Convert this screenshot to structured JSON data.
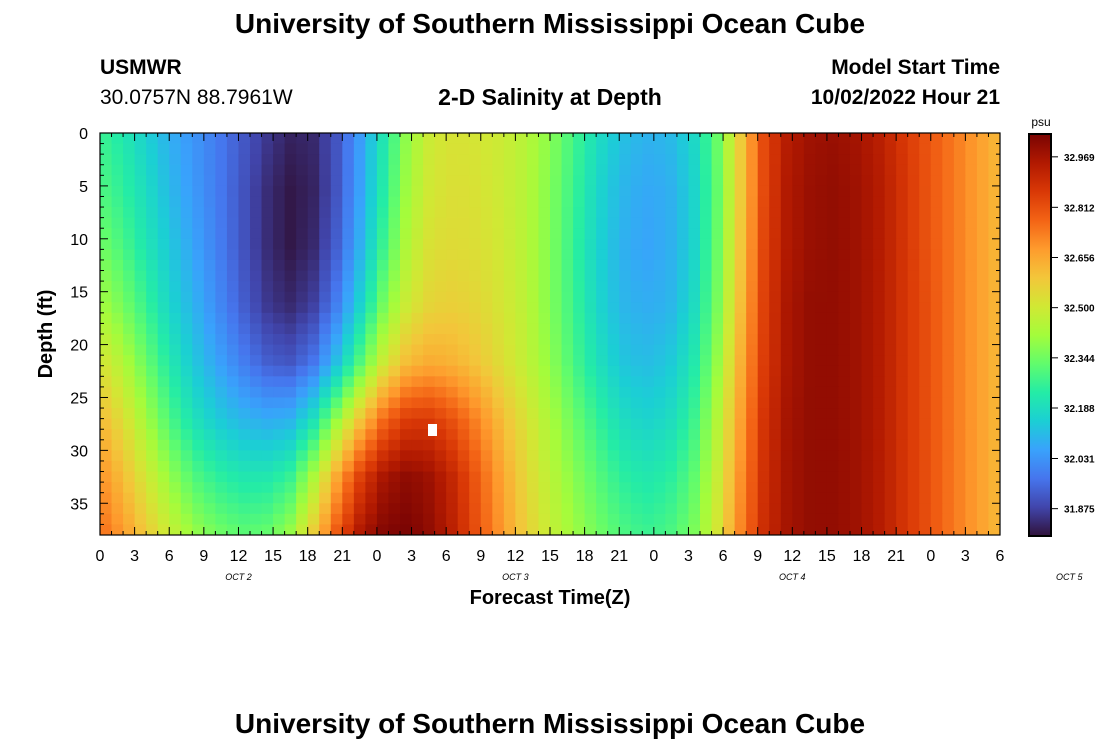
{
  "header": {
    "title": "University of Southern Mississippi Ocean Cube",
    "station_id": "USMWR",
    "coordinates": "30.0757N  88.7961W",
    "start_label": "Model Start Time",
    "start_value": "10/02/2022 Hour 21"
  },
  "footer": {
    "title": "University of Southern Mississippi Ocean Cube"
  },
  "chart_data": {
    "type": "heatmap",
    "title": "2-D Salinity at Depth",
    "xlabel": "Forecast Time(Z)",
    "ylabel": "Depth (ft)",
    "x_ticks": [
      "0",
      "3",
      "6",
      "9",
      "12",
      "15",
      "18",
      "21",
      "0",
      "3",
      "6",
      "9",
      "12",
      "15",
      "18",
      "21",
      "0",
      "3",
      "6",
      "9",
      "12",
      "15",
      "18",
      "21",
      "0",
      "3",
      "6"
    ],
    "x_day_labels": [
      {
        "label": "OCT 2",
        "hour_index": 12
      },
      {
        "label": "OCT 3",
        "hour_index": 36
      },
      {
        "label": "OCT 4",
        "hour_index": 60
      },
      {
        "label": "OCT 5",
        "hour_index": 84
      }
    ],
    "x_range_hours": [
      0,
      78
    ],
    "y_ticks": [
      0,
      5,
      10,
      15,
      20,
      25,
      30,
      35
    ],
    "y_range_ft": [
      0,
      38
    ],
    "colorbar": {
      "unit": "psu",
      "ticks": [
        "32.969",
        "32.812",
        "32.656",
        "32.500",
        "32.344",
        "32.188",
        "32.031",
        "31.875"
      ],
      "range": [
        31.79,
        33.04
      ]
    },
    "colors": {
      "ramp": [
        "#30123b",
        "#4145ab",
        "#4675ed",
        "#39a2fc",
        "#1bcfd4",
        "#24eca6",
        "#61fc6c",
        "#a4fc3b",
        "#d1e834",
        "#f3c63a",
        "#fe9b2d",
        "#f36315",
        "#d93806",
        "#b11901",
        "#7a0403"
      ],
      "missing_marker": "#ffffff"
    },
    "salinity_field_psu": [
      [
        32.27,
        32.22,
        32.15,
        32.08,
        32.03,
        31.98,
        31.92,
        31.86,
        31.82,
        31.83,
        31.91,
        32.05,
        32.22,
        32.4,
        32.5,
        32.52,
        32.51,
        32.49,
        32.45,
        32.38,
        32.28,
        32.19,
        32.12,
        32.09,
        32.1,
        32.16,
        32.32,
        32.57,
        32.82,
        32.94,
        32.98,
        32.99,
        32.97,
        32.93,
        32.86,
        32.8,
        32.74,
        32.68,
        32.62
      ],
      [
        32.3,
        32.25,
        32.18,
        32.1,
        32.04,
        31.98,
        31.91,
        31.84,
        31.8,
        31.82,
        31.91,
        32.06,
        32.24,
        32.42,
        32.51,
        32.53,
        32.52,
        32.49,
        32.45,
        32.37,
        32.27,
        32.17,
        32.1,
        32.07,
        32.08,
        32.15,
        32.31,
        32.57,
        32.82,
        32.95,
        32.99,
        33.0,
        32.98,
        32.94,
        32.87,
        32.8,
        32.74,
        32.68,
        32.62
      ],
      [
        32.35,
        32.29,
        32.21,
        32.13,
        32.06,
        31.99,
        31.91,
        31.84,
        31.8,
        31.83,
        31.93,
        32.09,
        32.28,
        32.45,
        32.53,
        32.54,
        32.53,
        32.5,
        32.45,
        32.37,
        32.26,
        32.16,
        32.09,
        32.06,
        32.08,
        32.15,
        32.32,
        32.58,
        32.83,
        32.95,
        32.99,
        33.0,
        32.98,
        32.94,
        32.87,
        32.8,
        32.74,
        32.68,
        32.62
      ],
      [
        32.42,
        32.35,
        32.26,
        32.16,
        32.09,
        32.01,
        31.93,
        31.86,
        31.83,
        31.87,
        31.99,
        32.16,
        32.36,
        32.5,
        32.56,
        32.57,
        32.55,
        32.51,
        32.46,
        32.37,
        32.27,
        32.17,
        32.1,
        32.08,
        32.09,
        32.17,
        32.34,
        32.6,
        32.84,
        32.96,
        33.0,
        33.0,
        32.98,
        32.94,
        32.87,
        32.81,
        32.74,
        32.68,
        32.62
      ],
      [
        32.52,
        32.44,
        32.33,
        32.22,
        32.13,
        32.06,
        31.99,
        31.93,
        31.91,
        31.97,
        32.12,
        32.31,
        32.5,
        32.62,
        32.65,
        32.63,
        32.59,
        32.53,
        32.47,
        32.39,
        32.29,
        32.2,
        32.13,
        32.11,
        32.13,
        32.21,
        32.38,
        32.63,
        32.85,
        32.96,
        33.0,
        33.0,
        32.98,
        32.94,
        32.87,
        32.81,
        32.74,
        32.68,
        32.62
      ],
      [
        32.62,
        32.53,
        32.41,
        32.29,
        32.2,
        32.14,
        32.1,
        32.08,
        32.09,
        32.2,
        32.4,
        32.6,
        32.77,
        32.86,
        32.86,
        32.8,
        32.71,
        32.61,
        32.52,
        32.43,
        32.34,
        32.26,
        32.19,
        32.16,
        32.18,
        32.26,
        32.43,
        32.66,
        32.87,
        32.97,
        33.0,
        33.0,
        32.98,
        32.94,
        32.87,
        32.81,
        32.74,
        32.68,
        32.62
      ],
      [
        32.7,
        32.61,
        32.5,
        32.39,
        32.3,
        32.25,
        32.22,
        32.22,
        32.26,
        32.43,
        32.66,
        32.85,
        32.97,
        33.01,
        32.98,
        32.9,
        32.78,
        32.66,
        32.55,
        32.46,
        32.38,
        32.31,
        32.25,
        32.22,
        32.24,
        32.31,
        32.47,
        32.69,
        32.88,
        32.97,
        33.0,
        33.0,
        32.98,
        32.94,
        32.87,
        32.81,
        32.74,
        32.68,
        32.62
      ],
      [
        32.76,
        32.68,
        32.58,
        32.48,
        32.4,
        32.35,
        32.32,
        32.33,
        32.4,
        32.58,
        32.8,
        32.96,
        33.03,
        33.04,
        33.0,
        32.92,
        32.8,
        32.68,
        32.57,
        32.48,
        32.41,
        32.35,
        32.3,
        32.27,
        32.29,
        32.35,
        32.5,
        32.71,
        32.89,
        32.97,
        33.0,
        33.0,
        32.98,
        32.94,
        32.87,
        32.81,
        32.74,
        32.68,
        32.62
      ]
    ]
  }
}
